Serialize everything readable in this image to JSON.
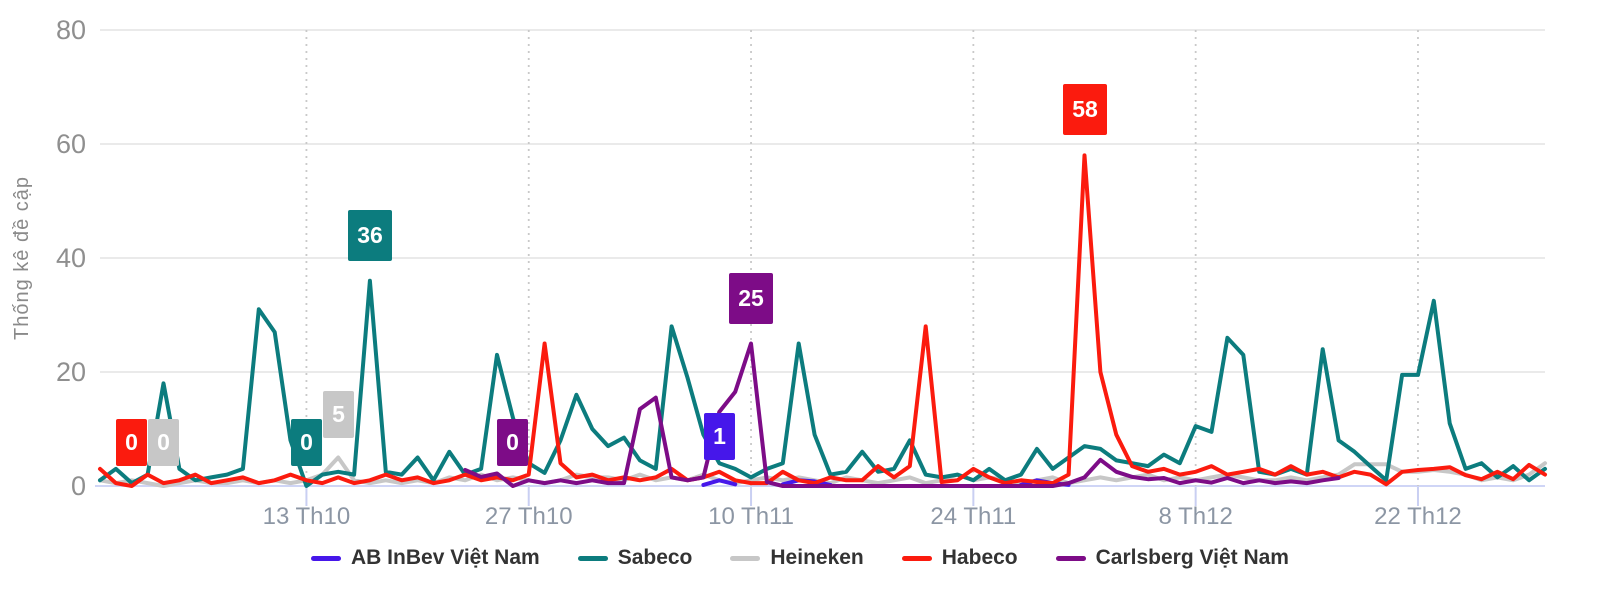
{
  "chart_data": {
    "type": "line",
    "title": "",
    "ylabel": "Thống kê đề cập",
    "xlabel": "",
    "ylim": [
      0,
      80
    ],
    "y_ticks": [
      0,
      20,
      40,
      60,
      80
    ],
    "x_ticks": [
      {
        "day": 13,
        "label": "13 Th10"
      },
      {
        "day": 27,
        "label": "27 Th10"
      },
      {
        "day": 41,
        "label": "10 Th11"
      },
      {
        "day": 55,
        "label": "24 Th11"
      },
      {
        "day": 69,
        "label": "8 Th12"
      },
      {
        "day": 83,
        "label": "22 Th12"
      }
    ],
    "days": 92,
    "grid": {
      "horizontal": true,
      "vertical_dotted_at_ticks": true
    },
    "legend_position": "bottom",
    "draw_order": [
      2,
      0,
      1,
      3,
      4
    ],
    "series": [
      {
        "name": "AB InBev Việt Nam",
        "color": "#4617EA",
        "values": [
          null,
          null,
          null,
          null,
          null,
          null,
          null,
          null,
          null,
          null,
          null,
          null,
          null,
          null,
          null,
          null,
          null,
          null,
          null,
          null,
          null,
          null,
          null,
          null,
          null,
          null,
          null,
          null,
          null,
          null,
          null,
          null,
          null,
          null,
          null,
          null,
          null,
          null,
          0.2,
          1,
          0.3,
          null,
          null,
          0.3,
          1,
          0.8,
          0.2,
          null,
          null,
          null,
          null,
          null,
          null,
          null,
          null,
          null,
          null,
          null,
          0.2,
          1,
          0.5,
          0.2,
          null,
          null,
          null,
          null,
          null,
          null,
          null,
          null,
          null,
          null,
          null,
          null,
          null,
          null,
          null,
          null,
          null,
          null,
          null,
          null,
          null,
          null,
          null,
          null,
          null,
          null,
          null,
          null,
          null,
          null,
          null
        ]
      },
      {
        "name": "Sabeco",
        "color": "#0C7C7E",
        "values": [
          1,
          3,
          0.5,
          2,
          18,
          3,
          1,
          1.5,
          2,
          3,
          31,
          27,
          8,
          0,
          2,
          2.5,
          2,
          36,
          2.5,
          2,
          5,
          1,
          6,
          2,
          3,
          23,
          12,
          4,
          2.3,
          8,
          16,
          10,
          7,
          8.5,
          4.5,
          3,
          28,
          19,
          9,
          4,
          3,
          1.5,
          3,
          4,
          25,
          9,
          2,
          2.5,
          6,
          2.5,
          3,
          8,
          2,
          1.5,
          2,
          1,
          3,
          1,
          2,
          6.5,
          3,
          5,
          7,
          6.5,
          4.5,
          4,
          3.5,
          5.5,
          4,
          10.5,
          9.5,
          26,
          23,
          2.5,
          2,
          3,
          2,
          24,
          8,
          6,
          3.5,
          1,
          19.5,
          19.5,
          32.5,
          11,
          3,
          4,
          1.5,
          3.5,
          1,
          3
        ]
      },
      {
        "name": "Heineken",
        "color": "#C7C7C7",
        "values": [
          1,
          0.5,
          1,
          0.5,
          0,
          0.5,
          1,
          0.5,
          0.5,
          1,
          0.5,
          1,
          0.5,
          1,
          2,
          5,
          1,
          0.5,
          1,
          0.5,
          1,
          0.5,
          1.5,
          1,
          2,
          1,
          1.5,
          1,
          0.5,
          1,
          2,
          1.5,
          1.5,
          1,
          2,
          1,
          1.5,
          1,
          2,
          1,
          0.5,
          1,
          1.5,
          1,
          1.5,
          1,
          0.5,
          1.5,
          1,
          0.5,
          1,
          1.5,
          0.5,
          1,
          2,
          1,
          1.5,
          1,
          0.5,
          1,
          1.5,
          0.5,
          1,
          1.5,
          1,
          1.5,
          2,
          1,
          1.5,
          1,
          1.5,
          2,
          1.5,
          1,
          1,
          1.5,
          1,
          1.5,
          2,
          3.8,
          3.8,
          3.8,
          2.5,
          2.5,
          2.8,
          2.5,
          2,
          1,
          1.5,
          1,
          2,
          4
        ]
      },
      {
        "name": "Habeco",
        "color": "#FB1B0E",
        "values": [
          3,
          0.5,
          0,
          2,
          0.5,
          1,
          2,
          0.5,
          1,
          1.5,
          0.5,
          1,
          2,
          1,
          0.5,
          1.5,
          0.5,
          1,
          2,
          1,
          1.5,
          0.5,
          1,
          2,
          1,
          1.5,
          1,
          2,
          25,
          4,
          1.5,
          2,
          1,
          1.5,
          1,
          1.5,
          3,
          1,
          1.5,
          2.5,
          1,
          0.5,
          0.5,
          2.5,
          1,
          0.5,
          1.5,
          1,
          1,
          3.5,
          1.5,
          3.5,
          28,
          0.7,
          1,
          3,
          1.5,
          0.5,
          1,
          0.7,
          0.5,
          2,
          58,
          20,
          9,
          3.5,
          2.5,
          3,
          2,
          2.5,
          3.5,
          2,
          2.5,
          3,
          2,
          3.5,
          2,
          2.5,
          1.5,
          2.5,
          2,
          0.3,
          2.5,
          2.8,
          3,
          3.3,
          1.9,
          1.2,
          2.5,
          1.2,
          3.7,
          2
        ]
      },
      {
        "name": "Carlsberg Việt Nam",
        "color": "#7D0C87",
        "values": [
          null,
          null,
          null,
          null,
          null,
          null,
          null,
          null,
          null,
          null,
          null,
          null,
          null,
          null,
          null,
          null,
          null,
          null,
          null,
          null,
          null,
          null,
          null,
          2.8,
          1.6,
          2.2,
          0,
          1,
          0.5,
          1,
          0.5,
          1,
          0.5,
          0.5,
          13.5,
          15.5,
          1.5,
          1,
          1.5,
          13,
          16.5,
          25,
          0.7,
          0,
          0,
          0,
          0,
          0,
          0,
          0,
          0,
          0,
          0,
          0,
          0,
          0,
          0,
          0,
          0,
          0,
          0,
          0.5,
          1.5,
          4.6,
          2.5,
          1.6,
          1.2,
          1.4,
          0.5,
          1,
          0.6,
          1.4,
          0.5,
          1,
          0.5,
          0.8,
          0.5,
          1,
          1.4,
          null,
          null,
          null,
          null,
          null,
          null,
          null,
          null,
          null,
          null,
          null,
          null,
          null
        ]
      }
    ],
    "point_labels": [
      {
        "series": "Habeco",
        "day": 2,
        "value": 0,
        "label": "0"
      },
      {
        "series": "Heineken",
        "day": 4,
        "value": 0,
        "label": "0"
      },
      {
        "series": "Sabeco",
        "day": 13,
        "value": 0,
        "label": "0"
      },
      {
        "series": "Heineken",
        "day": 15,
        "value": 5,
        "label": "5"
      },
      {
        "series": "Sabeco",
        "day": 17,
        "value": 36,
        "label": "36"
      },
      {
        "series": "Carlsberg Việt Nam",
        "day": 26,
        "value": 0,
        "label": "0"
      },
      {
        "series": "AB InBev Việt Nam",
        "day": 39,
        "value": 1,
        "label": "1"
      },
      {
        "series": "Carlsberg Việt Nam",
        "day": 41,
        "value": 25,
        "label": "25"
      },
      {
        "series": "Habeco",
        "day": 62,
        "value": 58,
        "label": "58"
      }
    ]
  }
}
